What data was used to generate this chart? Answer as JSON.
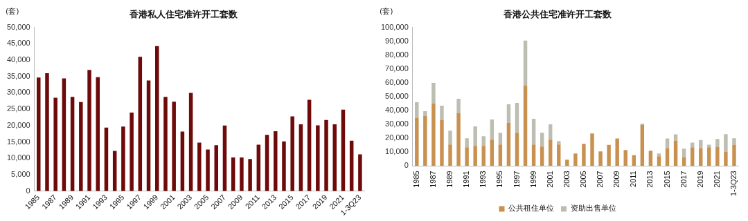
{
  "chart_data": [
    {
      "type": "bar",
      "title": "香港私人住宅准许开工套数",
      "ylabel": "(套)",
      "categories": [
        "1985",
        null,
        "1987",
        null,
        "1989",
        null,
        "1991",
        null,
        "1993",
        null,
        "1995",
        null,
        "1997",
        null,
        "1999",
        null,
        "2001",
        null,
        "2003",
        null,
        "2005",
        null,
        "2007",
        null,
        "2009",
        null,
        "2011",
        null,
        "2013",
        null,
        "2015",
        null,
        "2017",
        null,
        "2019",
        null,
        "2021",
        null,
        "1-3Q23"
      ],
      "series": [
        {
          "color": "#6e0a0a",
          "values": [
            34700,
            36000,
            28500,
            34400,
            28800,
            27200,
            37000,
            34800,
            19400,
            12300,
            19700,
            24000,
            41000,
            33800,
            44300,
            28800,
            27300,
            18200,
            30000,
            14800,
            12700,
            14000,
            20000,
            10300,
            10300,
            9800,
            14200,
            17200,
            18300,
            15200,
            22800,
            20400,
            27900,
            20100,
            21700,
            20400,
            24900,
            15400,
            11200
          ]
        }
      ],
      "ylim": [
        0,
        50000
      ],
      "yticks": [
        0,
        {
          "value": 5000,
          "label": "5,000"
        },
        {
          "value": 10000,
          "label": "10,000"
        },
        {
          "value": 15000,
          "label": "15,000"
        },
        {
          "value": 20000,
          "label": "20,000"
        },
        {
          "value": 25000,
          "label": "25,000"
        },
        {
          "value": 30000,
          "label": "30,000"
        },
        {
          "value": 35000,
          "label": "35,000"
        },
        {
          "value": 40000,
          "label": "40,000"
        },
        {
          "value": 45000,
          "label": "45,000"
        },
        {
          "value": 50000,
          "label": "50,000"
        }
      ],
      "grid": false,
      "legend": false
    },
    {
      "type": "bar",
      "title": "香港公共住宅准许开工套数",
      "ylabel": "(套)",
      "stacked": true,
      "categories": [
        "1985",
        null,
        "1987",
        null,
        "1989",
        null,
        "1991",
        null,
        "1993",
        null,
        "1995",
        null,
        "1997",
        null,
        "1999",
        null,
        "2001",
        null,
        "2003",
        null,
        "2005",
        null,
        "2007",
        null,
        "2009",
        null,
        "2011",
        null,
        "2013",
        null,
        "2015",
        null,
        "2017",
        null,
        "2019",
        null,
        "2021",
        null,
        "1-3Q23"
      ],
      "series": [
        {
          "name": "公共租住单位",
          "color": "#c89150",
          "values": [
            34500,
            36000,
            45000,
            33000,
            15500,
            38000,
            13500,
            14500,
            14500,
            19000,
            15500,
            31000,
            24000,
            58000,
            15500,
            14000,
            19000,
            15500,
            4500,
            9000,
            16000,
            23500,
            10500,
            15200,
            19800,
            11500,
            7700,
            29500,
            11000,
            7000,
            12800,
            18300,
            6200,
            13500,
            12800,
            13500,
            13800,
            10400,
            15300
          ]
        },
        {
          "name": "资助出售单位",
          "color": "#bdbdb2",
          "values": [
            11500,
            3500,
            15000,
            10500,
            10000,
            10500,
            6500,
            14000,
            7000,
            14500,
            8500,
            13500,
            21500,
            32500,
            18500,
            10000,
            11000,
            2500,
            0,
            0,
            0,
            0,
            0,
            0,
            0,
            0,
            0,
            1000,
            0,
            2000,
            7000,
            4500,
            6300,
            3300,
            5900,
            1800,
            5700,
            12600,
            4700
          ]
        }
      ],
      "ylim": [
        0,
        100000
      ],
      "yticks": [
        0,
        {
          "value": 10000,
          "label": "10,000"
        },
        {
          "value": 20000,
          "label": "20,000"
        },
        {
          "value": 30000,
          "label": "30,000"
        },
        {
          "value": 40000,
          "label": "40,000"
        },
        {
          "value": 50000,
          "label": "50,000"
        },
        {
          "value": 60000,
          "label": "60,000"
        },
        {
          "value": 70000,
          "label": "70,000"
        },
        {
          "value": 80000,
          "label": "80,000"
        },
        {
          "value": 90000,
          "label": "90,000"
        },
        {
          "value": 100000,
          "label": "100,000"
        }
      ],
      "grid": false,
      "legend": "bottom"
    }
  ]
}
